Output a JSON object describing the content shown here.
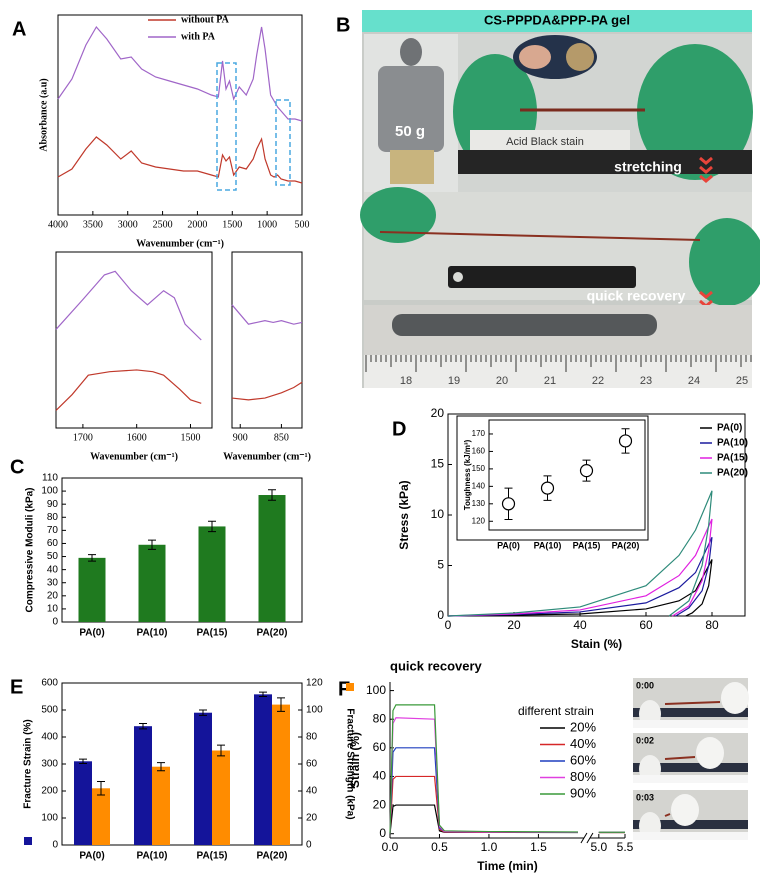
{
  "panel_labels": [
    "A",
    "B",
    "C",
    "D",
    "E",
    "F"
  ],
  "photos": {
    "B": {
      "title": "CS-PPPDA&PPP-PA gel",
      "weight": "50 g",
      "stain": "Acid Black stain",
      "stretch": "stretching",
      "recovery": "quick recovery",
      "ruler": [
        "18",
        "19",
        "20",
        "21",
        "22",
        "23",
        "24",
        "25"
      ]
    },
    "F": [
      "0:00",
      "0:02",
      "0:03"
    ]
  },
  "chart_data": [
    {
      "type": "line",
      "xlabel": "Wavenumber (cm⁻¹)",
      "ylabel": "Absorbance (a.u)",
      "xlim": [
        4000,
        500
      ],
      "ylim": [
        0,
        1
      ],
      "xticks": [
        4000,
        3500,
        3000,
        2500,
        2000,
        1500,
        1000,
        500
      ],
      "x": [
        4000,
        3800,
        3600,
        3450,
        3300,
        3100,
        2950,
        2800,
        2600,
        2400,
        2200,
        2000,
        1800,
        1700,
        1640,
        1590,
        1540,
        1480,
        1400,
        1300,
        1200,
        1150,
        1080,
        1030,
        950,
        900,
        850,
        800,
        700,
        600,
        500
      ],
      "series": [
        {
          "name": "without PA",
          "color": "#c0392b",
          "values": [
            0.19,
            0.23,
            0.33,
            0.39,
            0.35,
            0.28,
            0.32,
            0.26,
            0.24,
            0.23,
            0.22,
            0.22,
            0.2,
            0.19,
            0.3,
            0.27,
            0.29,
            0.2,
            0.24,
            0.23,
            0.28,
            0.33,
            0.38,
            0.28,
            0.2,
            0.19,
            0.2,
            0.18,
            0.17,
            0.17,
            0.16
          ]
        },
        {
          "name": "with PA",
          "color": "#a066c8",
          "values": [
            0.58,
            0.68,
            0.85,
            0.94,
            0.88,
            0.78,
            0.79,
            0.73,
            0.69,
            0.67,
            0.65,
            0.63,
            0.6,
            0.59,
            0.77,
            0.63,
            0.67,
            0.58,
            0.64,
            0.6,
            0.68,
            0.8,
            0.94,
            0.83,
            0.6,
            0.57,
            0.54,
            0.52,
            0.48,
            0.48,
            0.47
          ]
        }
      ],
      "legend": "upper center"
    },
    {
      "type": "line",
      "xlabel": "Wavenumber (cm⁻¹)",
      "xlim": [
        1750,
        1460
      ],
      "ylim": [
        0,
        1
      ],
      "xticks": [
        1700,
        1600,
        1500
      ],
      "series": [
        {
          "color": "#c0392b",
          "x": [
            1750,
            1720,
            1690,
            1650,
            1600,
            1570,
            1550,
            1520,
            1500,
            1480
          ],
          "values": [
            0.1,
            0.19,
            0.3,
            0.32,
            0.33,
            0.32,
            0.3,
            0.22,
            0.16,
            0.14
          ]
        },
        {
          "color": "#a066c8",
          "x": [
            1750,
            1700,
            1660,
            1640,
            1610,
            1580,
            1550,
            1530,
            1510,
            1480
          ],
          "values": [
            0.56,
            0.73,
            0.87,
            0.89,
            0.78,
            0.7,
            0.78,
            0.74,
            0.59,
            0.5
          ]
        }
      ]
    },
    {
      "type": "line",
      "xlabel": "Wavenumber (cm⁻¹)",
      "xlim": [
        910,
        825
      ],
      "ylim": [
        0,
        1
      ],
      "xticks": [
        900,
        850
      ],
      "series": [
        {
          "color": "#c0392b",
          "x": [
            910,
            890,
            870,
            850,
            835,
            825
          ],
          "values": [
            0.17,
            0.16,
            0.17,
            0.2,
            0.23,
            0.26
          ]
        },
        {
          "color": "#a066c8",
          "x": [
            910,
            890,
            880,
            870,
            860,
            850,
            835,
            825
          ],
          "values": [
            0.7,
            0.59,
            0.6,
            0.61,
            0.6,
            0.61,
            0.59,
            0.6
          ]
        }
      ]
    },
    {
      "type": "bar",
      "ylabel": "Compressive Moduli (kPa)",
      "categories": [
        "PA(0)",
        "PA(10)",
        "PA(15)",
        "PA(20)"
      ],
      "series": [
        {
          "color": "#1f7a1f",
          "values": [
            49,
            59,
            73,
            97
          ],
          "errors": [
            2.5,
            3.5,
            4,
            4
          ]
        }
      ],
      "ylim": [
        0,
        110
      ],
      "yticks": [
        0,
        10,
        20,
        30,
        40,
        50,
        60,
        70,
        80,
        90,
        100,
        110
      ]
    },
    {
      "type": "line",
      "xlabel": "Stain (%)",
      "ylabel": "Stress (kPa)",
      "xlim": [
        0,
        90
      ],
      "ylim": [
        0,
        20
      ],
      "xticks": [
        0,
        20,
        40,
        60,
        80
      ],
      "yticks": [
        0,
        5,
        10,
        15,
        20
      ],
      "series": [
        {
          "name": "PA(0)",
          "color": "#000000",
          "x": [
            0,
            20,
            40,
            60,
            70,
            75,
            80,
            79,
            77,
            74,
            72
          ],
          "values": [
            0,
            0.1,
            0.2,
            0.7,
            1.5,
            2.5,
            5.6,
            3,
            1.2,
            0.3,
            0
          ]
        },
        {
          "name": "PA(10)",
          "color": "#1b1b9e",
          "x": [
            0,
            20,
            40,
            60,
            70,
            75,
            80,
            79,
            77,
            73,
            69
          ],
          "values": [
            0,
            0.15,
            0.4,
            1.3,
            2.8,
            4.3,
            7.8,
            5,
            2.5,
            0.8,
            0
          ]
        },
        {
          "name": "PA(15)",
          "color": "#e020e0",
          "x": [
            0,
            20,
            40,
            60,
            70,
            75,
            80,
            79,
            77,
            73,
            68
          ],
          "values": [
            0,
            0.2,
            0.6,
            2,
            4,
            6,
            9.6,
            6.5,
            3.5,
            1,
            0
          ]
        },
        {
          "name": "PA(20)",
          "color": "#2e8b7a",
          "x": [
            0,
            20,
            40,
            60,
            70,
            75,
            80,
            79,
            77,
            73,
            67
          ],
          "values": [
            0,
            0.3,
            0.9,
            3,
            6,
            8.5,
            12.4,
            9,
            5,
            1.5,
            0
          ]
        }
      ],
      "legend": "upper right"
    },
    {
      "type": "scatter",
      "ylabel": "Toughness (kJ/m³)",
      "categories": [
        "PA(0)",
        "PA(10)",
        "PA(15)",
        "PA(20)"
      ],
      "values": [
        130,
        139,
        149,
        166
      ],
      "errors": [
        9,
        7,
        6,
        7
      ],
      "ylim": [
        115,
        178
      ],
      "yticks": [
        120,
        130,
        140,
        150,
        160,
        170
      ]
    },
    {
      "type": "bar",
      "ylabel": "Fracture Strain (%)",
      "y2label": "Fracture Strength (kPa)",
      "categories": [
        "PA(0)",
        "PA(10)",
        "PA(15)",
        "PA(20)"
      ],
      "series": [
        {
          "color": "#14149a",
          "values": [
            310,
            440,
            490,
            558
          ],
          "errors": [
            8,
            10,
            10,
            8
          ]
        },
        {
          "color": "#ff8c00",
          "axis": "y2",
          "values": [
            42,
            58,
            70,
            104
          ],
          "errors": [
            5,
            3,
            4,
            5
          ]
        }
      ],
      "ylim": [
        0,
        600
      ],
      "yticks": [
        0,
        100,
        200,
        300,
        400,
        500,
        600
      ],
      "y2lim": [
        0,
        120
      ],
      "y2ticks": [
        0,
        20,
        40,
        60,
        80,
        100,
        120
      ]
    },
    {
      "type": "line",
      "title": "quick recovery",
      "xlabel": "Time (min)",
      "ylabel": "Strain (%)",
      "legend_title": "different strain",
      "xlim": [
        0,
        5.5
      ],
      "xbreak": [
        1.95,
        4.85
      ],
      "ylim": [
        -3,
        106
      ],
      "xticks": [
        {
          "value": 0,
          "label": "0.0"
        },
        0.5,
        {
          "value": 1,
          "label": "1.0"
        },
        1.5,
        {
          "value": 5,
          "label": "5.0"
        },
        5.5
      ],
      "yticks": [
        0,
        20,
        40,
        60,
        80,
        100
      ],
      "x": [
        0,
        0.03,
        0.06,
        0.45,
        0.5,
        0.55,
        1.0,
        1.9,
        5.0,
        5.5
      ],
      "series": [
        {
          "name": "20%",
          "color": "#000000",
          "values": [
            0,
            19,
            20,
            20,
            2,
            1,
            1,
            0.8,
            0.8,
            0.8
          ]
        },
        {
          "name": "40%",
          "color": "#d62728",
          "values": [
            0,
            38,
            40,
            40,
            3,
            1.2,
            1,
            1,
            0.8,
            0.8
          ]
        },
        {
          "name": "60%",
          "color": "#1f3fbf",
          "values": [
            0,
            57,
            60,
            60,
            4,
            1.5,
            1.2,
            1,
            1,
            1
          ]
        },
        {
          "name": "80%",
          "color": "#e040e0",
          "values": [
            0,
            77,
            81,
            80,
            5,
            1.5,
            1.2,
            1,
            1,
            1
          ]
        },
        {
          "name": "90%",
          "color": "#3a9a3a",
          "values": [
            0,
            86,
            90,
            90,
            6,
            2,
            1.5,
            1.2,
            1,
            1
          ]
        }
      ],
      "legend": "center right"
    }
  ]
}
